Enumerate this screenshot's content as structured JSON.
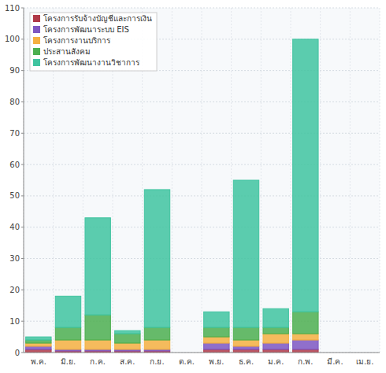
{
  "chart_data": {
    "type": "bar",
    "stacked": true,
    "grid": true,
    "legend": "top-left",
    "categories": [
      "พ.ค.",
      "มิ.ย.",
      "ก.ค.",
      "ส.ค.",
      "ก.ย.",
      "ต.ค.",
      "พ.ย.",
      "ธ.ค.",
      "ม.ค.",
      "ก.พ.",
      "มี.ค.",
      "เม.ย."
    ],
    "ylim": [
      0,
      110
    ],
    "yticks": [
      0,
      10,
      20,
      30,
      40,
      50,
      60,
      70,
      80,
      90,
      100,
      110
    ],
    "series": [
      {
        "name": "โครงการรับจ้างบัญชีและการเงิน",
        "color": "#b03a48",
        "values": [
          1,
          0.5,
          0.5,
          0.5,
          0.5,
          0,
          1,
          1,
          1,
          1,
          0,
          0
        ]
      },
      {
        "name": "โครงการพัฒนาระบบ EIS",
        "color": "#7e57c2",
        "values": [
          1,
          0.5,
          0.5,
          0.5,
          0.5,
          0,
          2,
          1,
          2,
          3,
          0,
          0
        ]
      },
      {
        "name": "โครงการงานบริการ",
        "color": "#f5b041",
        "values": [
          1,
          3,
          3,
          2,
          3,
          0,
          2,
          2,
          3,
          2,
          0,
          0
        ]
      },
      {
        "name": "ประสานสังคม",
        "color": "#4caf50",
        "values": [
          1,
          4,
          8,
          3,
          4,
          0,
          3,
          4,
          2,
          7,
          0,
          0
        ]
      },
      {
        "name": "โครงการพัฒนางานวิชาการ",
        "color": "#40c4a0",
        "values": [
          1,
          10,
          31,
          1,
          44,
          0,
          5,
          47,
          6,
          87,
          0,
          0
        ]
      }
    ]
  }
}
